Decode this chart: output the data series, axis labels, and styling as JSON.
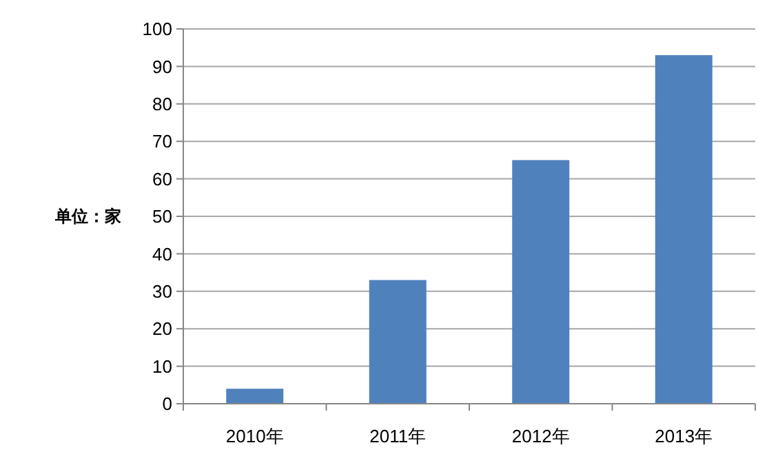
{
  "chart_data": {
    "type": "bar",
    "ylabel": "单位：家",
    "categories": [
      "2010年",
      "2011年",
      "2012年",
      "2013年"
    ],
    "values": [
      4,
      33,
      65,
      93
    ],
    "color": "#4f81bd",
    "ylim": [
      0,
      100
    ],
    "yticks": [
      0,
      10,
      20,
      30,
      40,
      50,
      60,
      70,
      80,
      90,
      100
    ],
    "grid": "y"
  }
}
